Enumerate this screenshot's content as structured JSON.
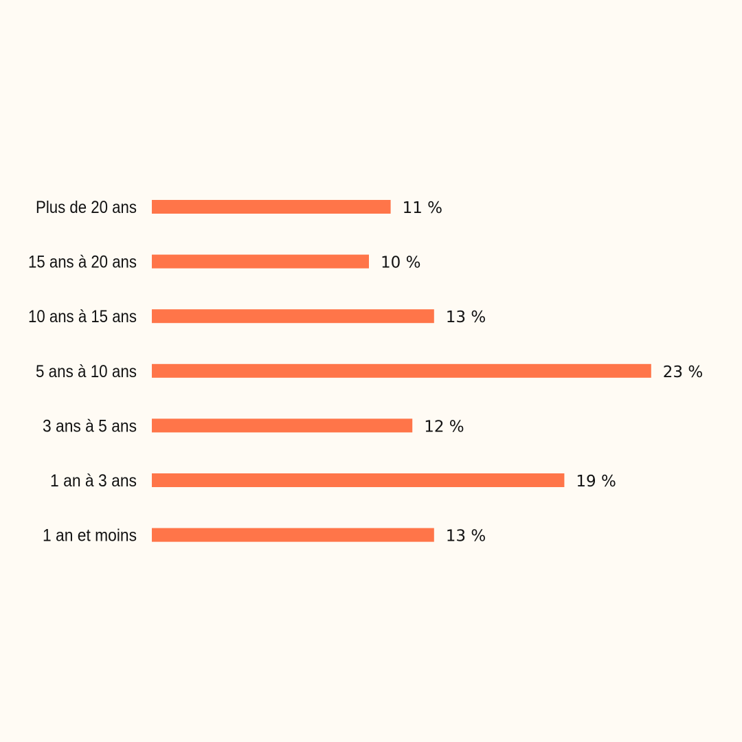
{
  "chart_data": {
    "type": "bar",
    "orientation": "horizontal",
    "categories": [
      "Plus de 20 ans",
      "15 ans à 20 ans",
      "10 ans à 15 ans",
      "5 ans à 10 ans",
      "3 ans à 5 ans",
      "1 an à 3 ans",
      "1 an et moins"
    ],
    "values": [
      11,
      10,
      13,
      23,
      12,
      19,
      13
    ],
    "value_labels": [
      "11 %",
      "10 %",
      "13 %",
      "23 %",
      "12 %",
      "19 %",
      "13 %"
    ],
    "unit": "%",
    "title": "",
    "xlabel": "",
    "ylabel": "",
    "grid": false,
    "legend": "none"
  },
  "colors": {
    "background": "#FFFBF4",
    "bar": "#FF7549",
    "text": "#111111"
  }
}
